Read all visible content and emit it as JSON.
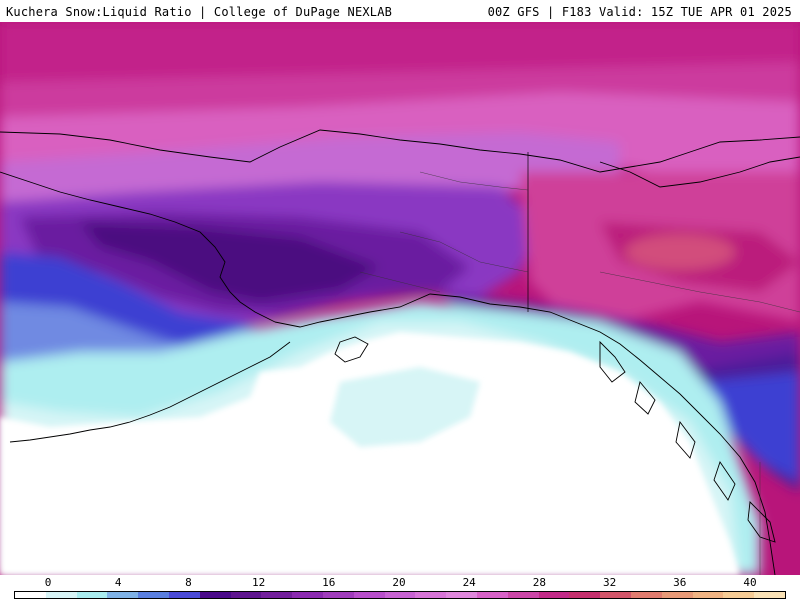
{
  "header": {
    "left": "Kuchera Snow:Liquid Ratio | College of DuPage NEXLAB",
    "right": "00Z GFS | F183 Valid: 15Z TUE APR 01 2025"
  },
  "legend": {
    "ticks": [
      "0",
      "4",
      "8",
      "12",
      "16",
      "20",
      "24",
      "28",
      "32",
      "36",
      "40"
    ],
    "colors": [
      "#ffffff",
      "#d8f4f6",
      "#a9ecee",
      "#7fb2e6",
      "#5a7fe0",
      "#4a4ad8",
      "#4b0a8a",
      "#5f158f",
      "#731f9c",
      "#8b2ab0",
      "#a03cbc",
      "#b84fcb",
      "#c863d3",
      "#d875d8",
      "#e088dd",
      "#d862c8",
      "#cc47a8",
      "#c22a88",
      "#c5306e",
      "#d2566a",
      "#e07c6f",
      "#e89a78",
      "#f0b484",
      "#f6cc96",
      "#fae2b6"
    ]
  },
  "colors": {
    "deep_magenta": "#b8157a",
    "pink": "#d23c9c",
    "light_pink": "#e06ecb",
    "violet": "#b459d4",
    "purple": "#8a37c2",
    "dark_purple": "#5c1a8c",
    "deepest": "#3f0a6e",
    "blue": "#3c3fd2",
    "light_blue": "#7fb2e6",
    "cyan": "#aeeef0",
    "pale_cyan": "#d7f5f6",
    "ocean_white": "#ffffff",
    "coastline": "#000000"
  }
}
